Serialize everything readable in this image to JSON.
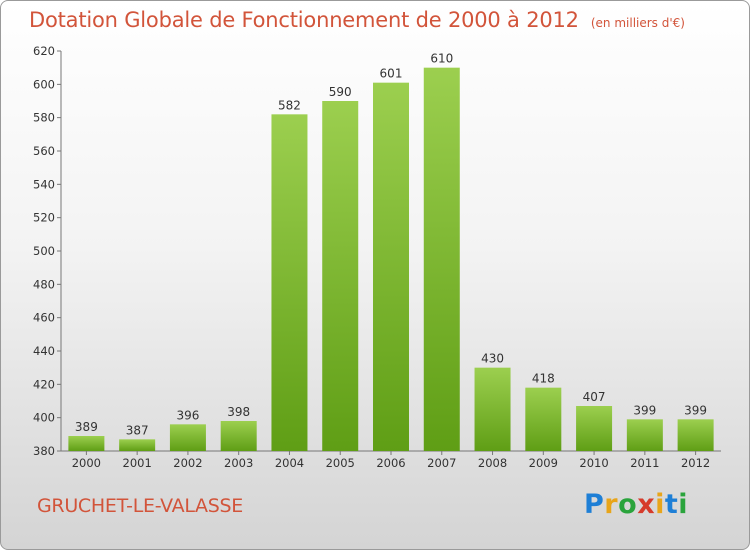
{
  "title": "Dotation Globale de Fonctionnement de 2000 à 2012",
  "unit_note": "(en milliers d'€)",
  "commune": "GRUCHET-LE-VALASSE",
  "logo": {
    "text": "Proxiti",
    "letter_colors": [
      "#1e7fd6",
      "#e8a51a",
      "#2aa43c",
      "#d63b2b",
      "#e8a51a",
      "#1e7fd6",
      "#2aa43c"
    ]
  },
  "colors": {
    "bar_top": "#9ccf4f",
    "bar_bottom": "#5f9e15",
    "text": "#d2543a"
  },
  "chart_data": {
    "type": "bar",
    "title": "Dotation Globale de Fonctionnement de 2000 à 2012",
    "subtitle": "(en milliers d'€)",
    "categories": [
      "2000",
      "2001",
      "2002",
      "2003",
      "2004",
      "2005",
      "2006",
      "2007",
      "2008",
      "2009",
      "2010",
      "2011",
      "2012"
    ],
    "values": [
      389,
      387,
      396,
      398,
      582,
      590,
      601,
      610,
      430,
      418,
      407,
      399,
      399
    ],
    "ylim": [
      380,
      620
    ],
    "yticks": [
      380,
      400,
      420,
      440,
      460,
      480,
      500,
      520,
      540,
      560,
      580,
      600,
      620
    ],
    "grid": false,
    "xlabel": "",
    "ylabel": ""
  }
}
